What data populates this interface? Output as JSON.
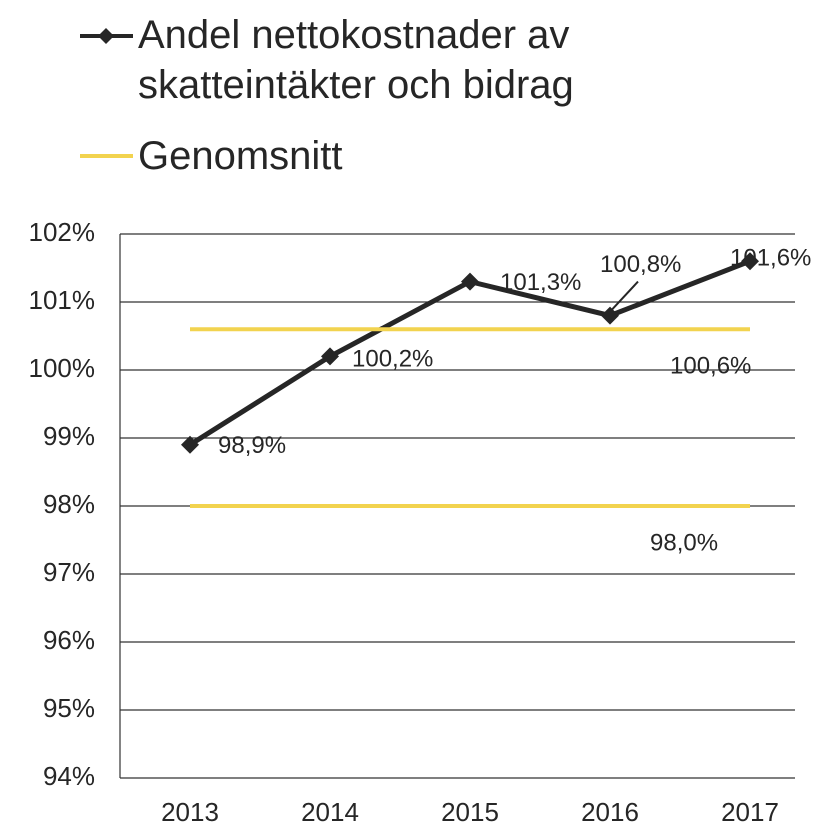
{
  "chart_data": {
    "type": "line",
    "categories": [
      "2013",
      "2014",
      "2015",
      "2016",
      "2017"
    ],
    "series": [
      {
        "name": "Andel nettokostnader av skatteintäkter och bidrag",
        "color": "#262626",
        "values": [
          98.9,
          100.2,
          101.3,
          100.8,
          101.6
        ],
        "value_labels": [
          "98,9%",
          "100,2%",
          "101,3%",
          "100,8%",
          "101,6%"
        ]
      },
      {
        "name": "Genomsnitt",
        "color": "#f2d34f",
        "values": [
          100.6,
          100.6,
          100.6,
          100.6,
          100.6
        ],
        "value_labels": [
          null,
          null,
          null,
          null,
          "100,6%"
        ]
      },
      {
        "color": "#f2d34f",
        "values": [
          98.0,
          98.0,
          98.0,
          98.0,
          98.0
        ],
        "value_labels": [
          null,
          null,
          null,
          null,
          "98,0%"
        ]
      }
    ],
    "ylim": [
      94,
      102
    ],
    "yticks": [
      {
        "value": 94,
        "label": "94%"
      },
      {
        "value": 95,
        "label": "95%"
      },
      {
        "value": 96,
        "label": "96%"
      },
      {
        "value": 97,
        "label": "97%"
      },
      {
        "value": 98,
        "label": "98%"
      },
      {
        "value": 99,
        "label": "99%"
      },
      {
        "value": 100,
        "label": "100%"
      },
      {
        "value": 101,
        "label": "101%"
      },
      {
        "value": 102,
        "label": "102%"
      }
    ],
    "grid": true
  }
}
